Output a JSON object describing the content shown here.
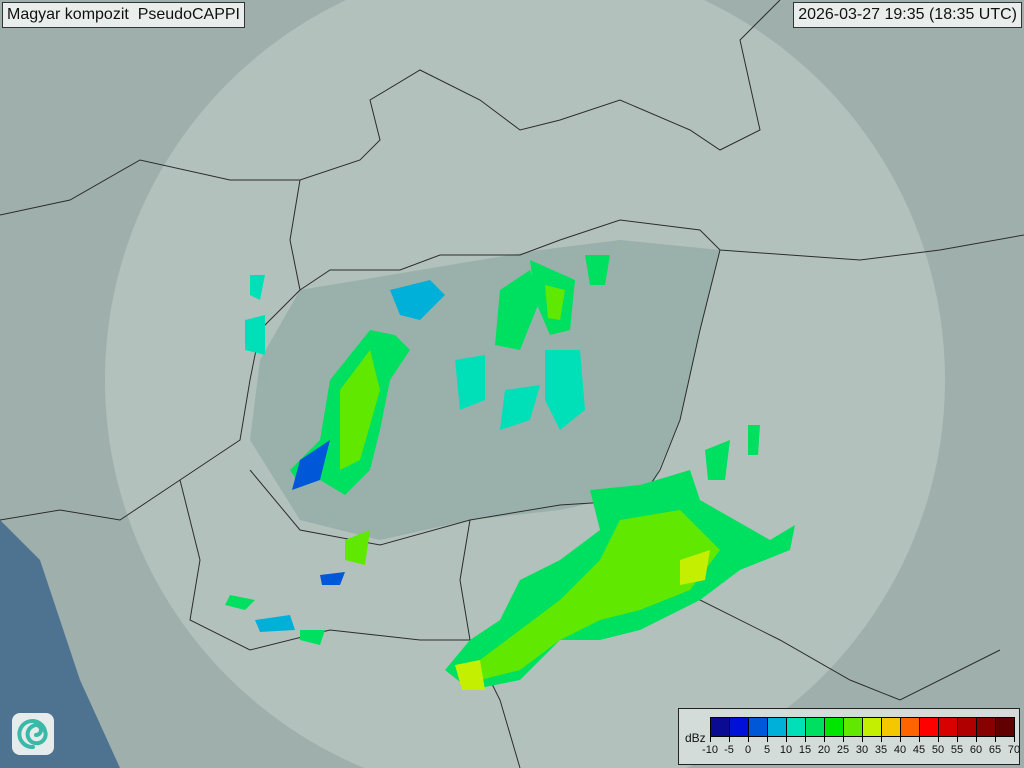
{
  "header": {
    "title": "Magyar kompozit  PseudoCAPPI",
    "timestamp": "2026-03-27 19:35 (18:35 UTC)"
  },
  "logo": {
    "icon": "swirl-logo-icon"
  },
  "legend": {
    "unit": "dBz",
    "ticks": [
      "-10",
      "-5",
      "0",
      "5",
      "10",
      "15",
      "20",
      "25",
      "30",
      "35",
      "40",
      "45",
      "50",
      "55",
      "60",
      "65",
      "70"
    ],
    "colors": [
      "#0a0a92",
      "#0010d8",
      "#0058d8",
      "#00b0d8",
      "#00e0b8",
      "#00e060",
      "#00e600",
      "#60e800",
      "#c4f000",
      "#f4c800",
      "#ff6400",
      "#ff0000",
      "#d80000",
      "#b00000",
      "#880000",
      "#600000"
    ]
  },
  "map": {
    "background": "#9fb0ac",
    "coverage": "#c3d0cc",
    "sea": "#4e7390",
    "border": "#2c2c2c"
  }
}
